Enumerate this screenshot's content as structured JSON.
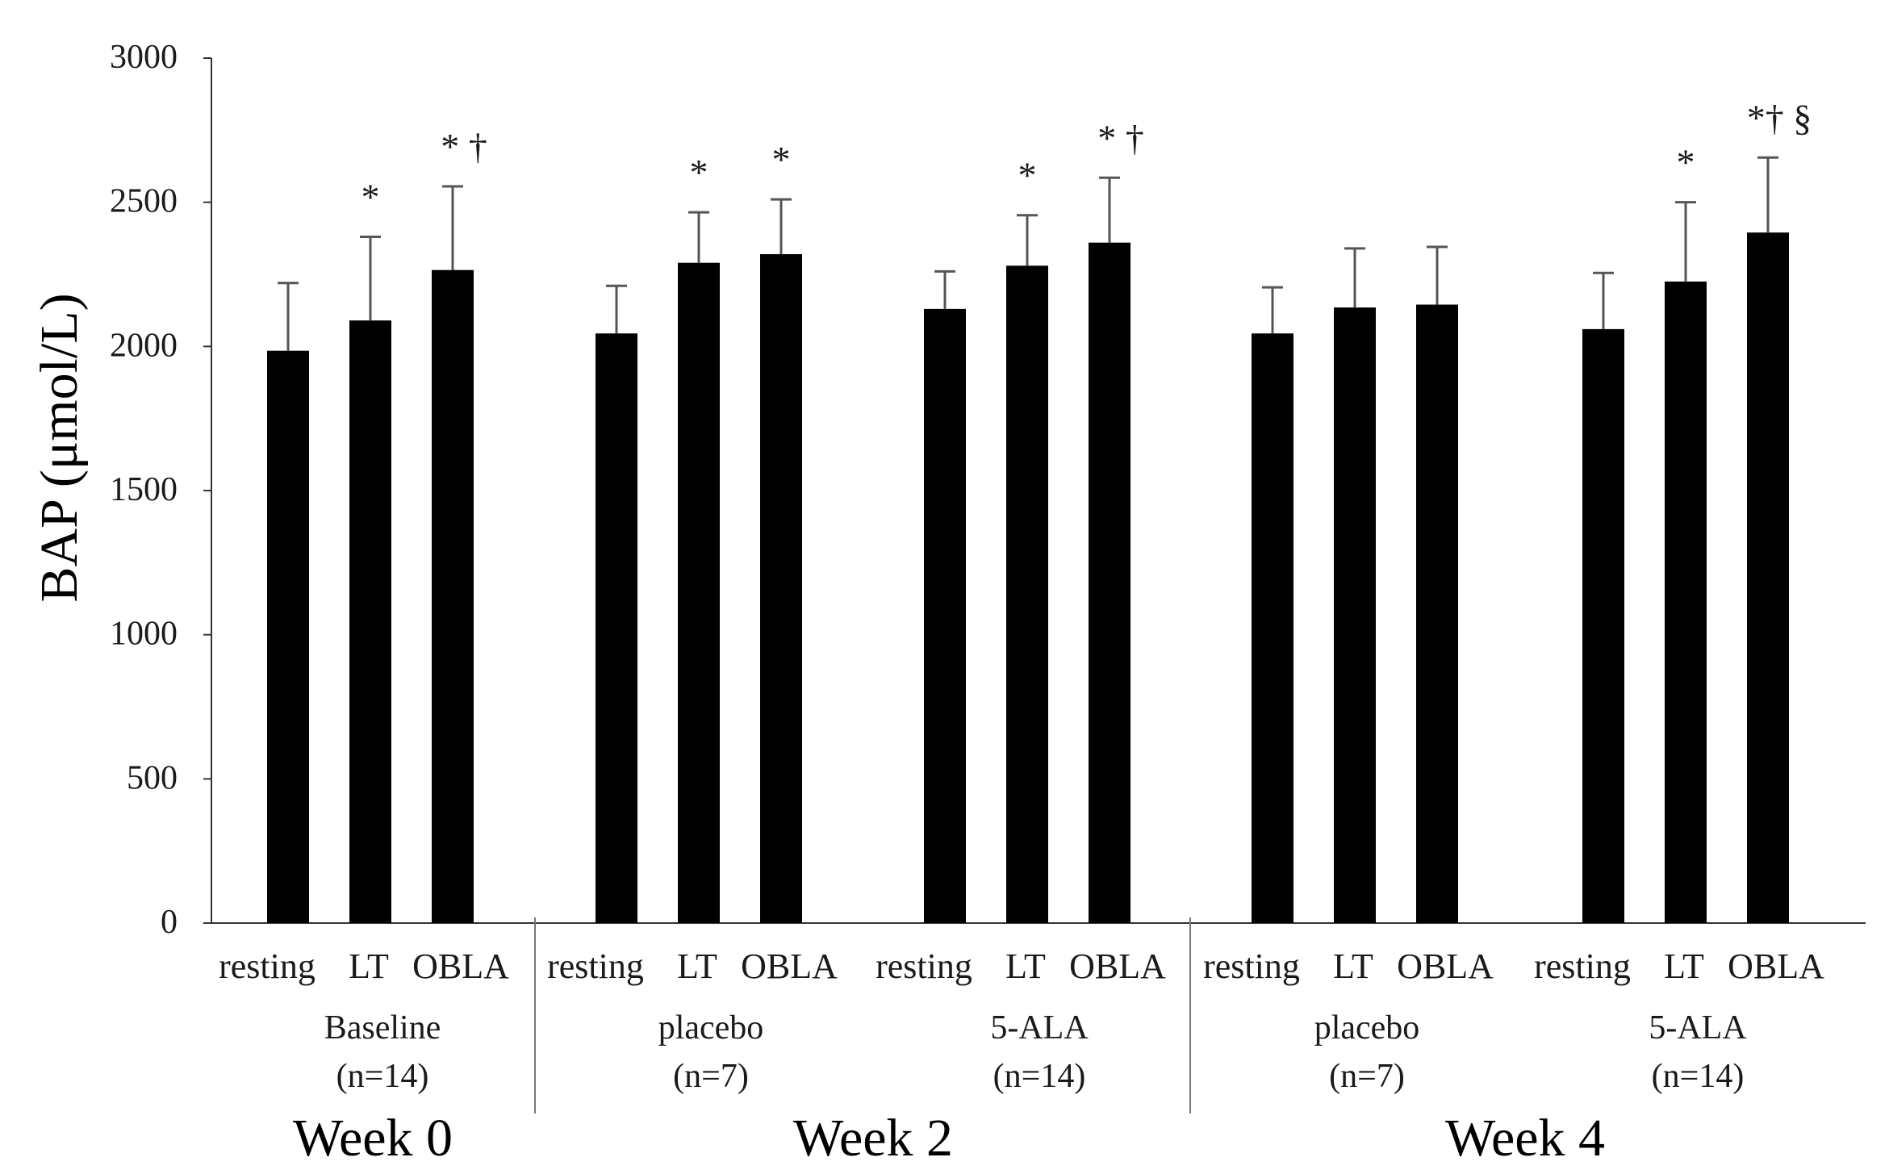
{
  "chart_data": {
    "type": "bar",
    "ylabel": "BAP (μmol/L)",
    "ylim": [
      0,
      3000
    ],
    "yticks": [
      0,
      500,
      1000,
      1500,
      2000,
      2500,
      3000
    ],
    "colors": {
      "bar": "#000000",
      "error": "#555555",
      "axis": "#333333"
    },
    "bars": [
      {
        "label": "resting",
        "group": 0,
        "value": 1985,
        "error": 235,
        "annotation": ""
      },
      {
        "label": "LT",
        "group": 0,
        "value": 2090,
        "error": 290,
        "annotation": "*"
      },
      {
        "label": "OBLA",
        "group": 0,
        "value": 2265,
        "error": 290,
        "annotation": "* †"
      },
      {
        "label": "resting",
        "group": 1,
        "value": 2045,
        "error": 165,
        "annotation": ""
      },
      {
        "label": "LT",
        "group": 1,
        "value": 2290,
        "error": 175,
        "annotation": "*"
      },
      {
        "label": "OBLA",
        "group": 1,
        "value": 2320,
        "error": 190,
        "annotation": "*"
      },
      {
        "label": "resting",
        "group": 2,
        "value": 2130,
        "error": 130,
        "annotation": ""
      },
      {
        "label": "LT",
        "group": 2,
        "value": 2280,
        "error": 175,
        "annotation": "*"
      },
      {
        "label": "OBLA",
        "group": 2,
        "value": 2360,
        "error": 225,
        "annotation": "* †"
      },
      {
        "label": "resting",
        "group": 3,
        "value": 2045,
        "error": 160,
        "annotation": ""
      },
      {
        "label": "LT",
        "group": 3,
        "value": 2135,
        "error": 205,
        "annotation": ""
      },
      {
        "label": "OBLA",
        "group": 3,
        "value": 2145,
        "error": 200,
        "annotation": ""
      },
      {
        "label": "resting",
        "group": 4,
        "value": 2060,
        "error": 195,
        "annotation": ""
      },
      {
        "label": "LT",
        "group": 4,
        "value": 2225,
        "error": 275,
        "annotation": "*"
      },
      {
        "label": "OBLA",
        "group": 4,
        "value": 2395,
        "error": 260,
        "annotation": "*† §"
      }
    ],
    "groups": [
      {
        "name": "Baseline",
        "n": "(n=14)"
      },
      {
        "name": "placebo",
        "n": "(n=7)"
      },
      {
        "name": "5-ALA",
        "n": "(n=14)"
      },
      {
        "name": "placebo",
        "n": "(n=7)"
      },
      {
        "name": "5-ALA",
        "n": "(n=14)"
      }
    ],
    "weeks": [
      {
        "label": "Week 0",
        "groups": [
          0
        ]
      },
      {
        "label": "Week 2",
        "groups": [
          1,
          2
        ]
      },
      {
        "label": "Week 4",
        "groups": [
          3,
          4
        ]
      }
    ]
  }
}
